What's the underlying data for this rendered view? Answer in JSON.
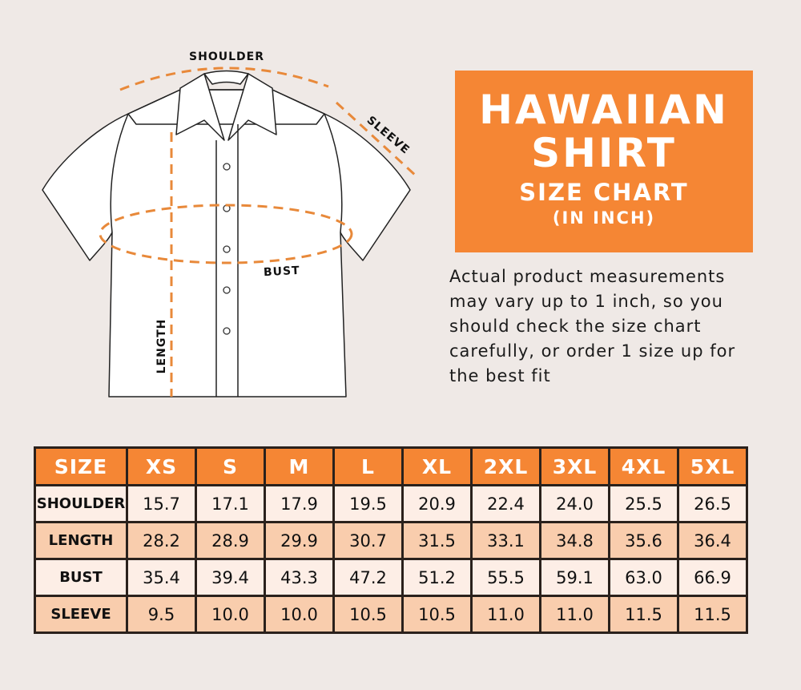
{
  "diagram": {
    "labels": {
      "shoulder": "SHOULDER",
      "sleeve": "SLEEVE",
      "bust": "BUST",
      "length": "LENGTH"
    }
  },
  "title": {
    "line1": "HAWAIIAN",
    "line2": "SHIRT",
    "line3": "SIZE CHART",
    "line4": "(IN INCH)"
  },
  "note": "Actual product measurements may vary up to 1 inch, so you should check the size chart carefully, or order 1 size up for the best fit",
  "colors": {
    "accent": "#f58634",
    "background": "#efe9e6",
    "row_light": "#fdeee6",
    "row_dark": "#f9cdad"
  },
  "table": {
    "headers": [
      "SIZE",
      "XS",
      "S",
      "M",
      "L",
      "XL",
      "2XL",
      "3XL",
      "4XL",
      "5XL"
    ],
    "rows": [
      {
        "label": "SHOULDER",
        "values": [
          "15.7",
          "17.1",
          "17.9",
          "19.5",
          "20.9",
          "22.4",
          "24.0",
          "25.5",
          "26.5"
        ]
      },
      {
        "label": "LENGTH",
        "values": [
          "28.2",
          "28.9",
          "29.9",
          "30.7",
          "31.5",
          "33.1",
          "34.8",
          "35.6",
          "36.4"
        ]
      },
      {
        "label": "BUST",
        "values": [
          "35.4",
          "39.4",
          "43.3",
          "47.2",
          "51.2",
          "55.5",
          "59.1",
          "63.0",
          "66.9"
        ]
      },
      {
        "label": "SLEEVE",
        "values": [
          "9.5",
          "10.0",
          "10.0",
          "10.5",
          "10.5",
          "11.0",
          "11.0",
          "11.5",
          "11.5"
        ]
      }
    ]
  }
}
